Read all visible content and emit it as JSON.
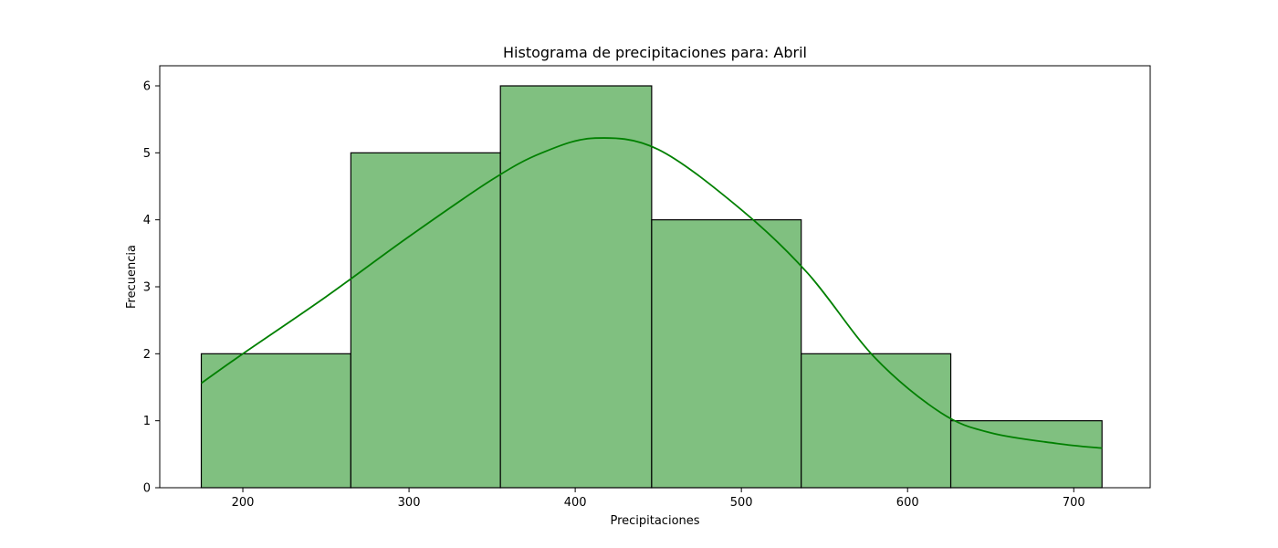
{
  "chart_data": {
    "type": "bar",
    "title": "Histograma de precipitaciones para: Abril",
    "xlabel": "Precipitaciones",
    "ylabel": "Frecuencia",
    "bins": [
      {
        "x0": 175,
        "x1": 265,
        "count": 2
      },
      {
        "x0": 265,
        "x1": 355,
        "count": 5
      },
      {
        "x0": 355,
        "x1": 446,
        "count": 6
      },
      {
        "x0": 446,
        "x1": 536,
        "count": 4
      },
      {
        "x0": 536,
        "x1": 626,
        "count": 2
      },
      {
        "x0": 626,
        "x1": 717,
        "count": 1
      }
    ],
    "kde_curve": [
      {
        "x": 175,
        "y": 1.56
      },
      {
        "x": 200,
        "y": 2.0
      },
      {
        "x": 250,
        "y": 2.85
      },
      {
        "x": 300,
        "y": 3.75
      },
      {
        "x": 350,
        "y": 4.6
      },
      {
        "x": 380,
        "y": 5.0
      },
      {
        "x": 412,
        "y": 5.22
      },
      {
        "x": 450,
        "y": 5.05
      },
      {
        "x": 500,
        "y": 4.15
      },
      {
        "x": 540,
        "y": 3.2
      },
      {
        "x": 580,
        "y": 1.95
      },
      {
        "x": 620,
        "y": 1.12
      },
      {
        "x": 650,
        "y": 0.82
      },
      {
        "x": 690,
        "y": 0.66
      },
      {
        "x": 717,
        "y": 0.59
      }
    ],
    "xlim": [
      150,
      746
    ],
    "ylim": [
      0,
      6.3
    ],
    "xticks": [
      200,
      300,
      400,
      500,
      600,
      700
    ],
    "yticks": [
      0,
      1,
      2,
      3,
      4,
      5,
      6
    ],
    "grid": false,
    "colors": {
      "bar_fill": "#80c080",
      "bar_edge": "#000000",
      "kde_line": "#008000"
    }
  }
}
